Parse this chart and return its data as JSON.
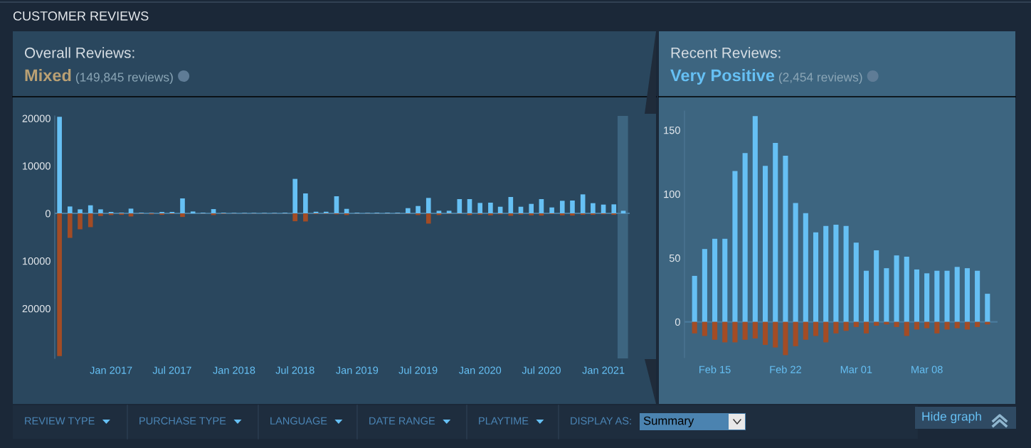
{
  "chart_data": [
    {
      "type": "bar",
      "title": "Overall Reviews:",
      "subtitle": "Mixed",
      "annotations": [
        "(149,845 reviews)"
      ],
      "x": [
        "2016-08",
        "2016-09",
        "2016-10",
        "2016-11",
        "2016-12",
        "2017-01",
        "2017-02",
        "2017-03",
        "2017-04",
        "2017-05",
        "2017-06",
        "2017-07",
        "2017-08",
        "2017-09",
        "2017-10",
        "2017-11",
        "2017-12",
        "2018-01",
        "2018-02",
        "2018-03",
        "2018-04",
        "2018-05",
        "2018-06",
        "2018-07",
        "2018-08",
        "2018-09",
        "2018-10",
        "2018-11",
        "2018-12",
        "2019-01",
        "2019-02",
        "2019-03",
        "2019-04",
        "2019-05",
        "2019-06",
        "2019-07",
        "2019-08",
        "2019-09",
        "2019-10",
        "2019-11",
        "2019-12",
        "2020-01",
        "2020-02",
        "2020-03",
        "2020-04",
        "2020-05",
        "2020-06",
        "2020-07",
        "2020-08",
        "2020-09",
        "2020-10",
        "2020-11",
        "2020-12",
        "2021-01",
        "2021-02",
        "2021-03"
      ],
      "series": [
        {
          "color": "#66c0f4",
          "values": [
            20300,
            1450,
            850,
            1700,
            850,
            300,
            150,
            1000,
            150,
            100,
            300,
            300,
            3150,
            400,
            150,
            900,
            150,
            100,
            100,
            100,
            100,
            100,
            150,
            7250,
            4200,
            350,
            350,
            3600,
            950,
            150,
            100,
            150,
            150,
            150,
            1100,
            1550,
            3250,
            550,
            550,
            3000,
            3000,
            2200,
            2250,
            1400,
            3450,
            1400,
            2000,
            3000,
            1250,
            2650,
            2700,
            4000,
            2150,
            1850,
            1900,
            550
          ]
        },
        {
          "color": "#a34c25",
          "values": [
            -30000,
            -5150,
            -3350,
            -2900,
            -550,
            -350,
            -300,
            -650,
            -100,
            -200,
            -300,
            -150,
            -750,
            null,
            -50,
            -350,
            -100,
            -50,
            -50,
            -50,
            -50,
            -50,
            -50,
            -1650,
            -1700,
            -150,
            -100,
            -200,
            -350,
            -50,
            -50,
            -50,
            -50,
            -50,
            -100,
            -350,
            -2150,
            -350,
            -100,
            -100,
            -350,
            -250,
            -400,
            -200,
            -500,
            -250,
            -400,
            -450,
            -150,
            -400,
            -450,
            -300,
            -300,
            -200,
            -300,
            null
          ]
        }
      ],
      "xlim": [
        "2016-07-18",
        "2021-03-20"
      ],
      "xticks": [
        {
          "value": "2017-01",
          "label": "Jan 2017"
        },
        {
          "value": "2017-07",
          "label": "Jul 2017"
        },
        {
          "value": "2018-01",
          "label": "Jan 2018"
        },
        {
          "value": "2018-07",
          "label": "Jul 2018"
        },
        {
          "value": "2019-01",
          "label": "Jan 2019"
        },
        {
          "value": "2019-07",
          "label": "Jul 2019"
        },
        {
          "value": "2020-01",
          "label": "Jan 2020"
        },
        {
          "value": "2020-07",
          "label": "Jul 2020"
        },
        {
          "value": "2021-01",
          "label": "Jan 2021"
        }
      ],
      "ylim": [
        -30500,
        20500
      ],
      "yticks": [
        20000,
        10000,
        0,
        {
          "value": -10000,
          "label": "10000"
        },
        {
          "value": -20000,
          "label": "20000"
        }
      ],
      "bands": [
        {
          "axis": "x",
          "from": "2021-02-12",
          "to": "2021-03-15",
          "color": "#3d6580"
        }
      ],
      "ref_lines": [
        {
          "axis": "y",
          "value": 0,
          "color": "#4a7b9d"
        }
      ],
      "stacked": true,
      "grid": false
    },
    {
      "type": "bar",
      "title": "Recent Reviews:",
      "subtitle": "Very Positive",
      "annotations": [
        "(2,454 reviews)"
      ],
      "x": [
        "2021-02-13",
        "2021-02-14",
        "2021-02-15",
        "2021-02-16",
        "2021-02-17",
        "2021-02-18",
        "2021-02-19",
        "2021-02-20",
        "2021-02-21",
        "2021-02-22",
        "2021-02-23",
        "2021-02-24",
        "2021-02-25",
        "2021-02-26",
        "2021-02-27",
        "2021-02-28",
        "2021-03-01",
        "2021-03-02",
        "2021-03-03",
        "2021-03-04",
        "2021-03-05",
        "2021-03-06",
        "2021-03-07",
        "2021-03-08",
        "2021-03-09",
        "2021-03-10",
        "2021-03-11",
        "2021-03-12",
        "2021-03-13",
        "2021-03-14"
      ],
      "series": [
        {
          "color": "#66c0f4",
          "values": [
            36,
            57,
            65,
            65,
            118,
            132,
            161,
            122,
            140,
            130,
            93,
            85,
            70,
            75,
            76,
            75,
            62,
            40,
            56,
            42,
            52,
            51,
            41,
            38,
            40,
            40,
            43,
            42,
            40,
            22
          ]
        },
        {
          "color": "#a34c25",
          "values": [
            -9,
            -11,
            -14,
            -16,
            -16,
            -14,
            -13,
            -18,
            -20,
            -26,
            -19,
            -14,
            -11,
            -16,
            -9,
            -7,
            -4,
            -9,
            -3,
            -2,
            -4,
            -11,
            -6,
            -5,
            -9,
            -6,
            -5,
            -6,
            -4,
            -2
          ]
        }
      ],
      "xlim": [
        "2021-02-12",
        "2021-03-15"
      ],
      "xticks": [
        {
          "value": "2021-02-15",
          "label": "Feb 15"
        },
        {
          "value": "2021-02-22",
          "label": "Feb 22"
        },
        {
          "value": "2021-03-01",
          "label": "Mar 01"
        },
        {
          "value": "2021-03-08",
          "label": "Mar 08"
        }
      ],
      "ylim": [
        -28,
        165
      ],
      "yticks": [
        0,
        50,
        100,
        150
      ],
      "stacked": true,
      "ref_lines": [
        {
          "axis": "y",
          "value": 0,
          "color": "#4a7b9d"
        }
      ],
      "grid": false
    },
    {
      "type": "other",
      "title": "CUSTOMER REVIEWS",
      "annotations": [
        "REVIEW TYPE",
        "PURCHASE TYPE",
        "LANGUAGE",
        "DATE RANGE",
        "PLAYTIME",
        "DISPLAY AS:",
        "Summary",
        "Hide graph"
      ]
    }
  ]
}
